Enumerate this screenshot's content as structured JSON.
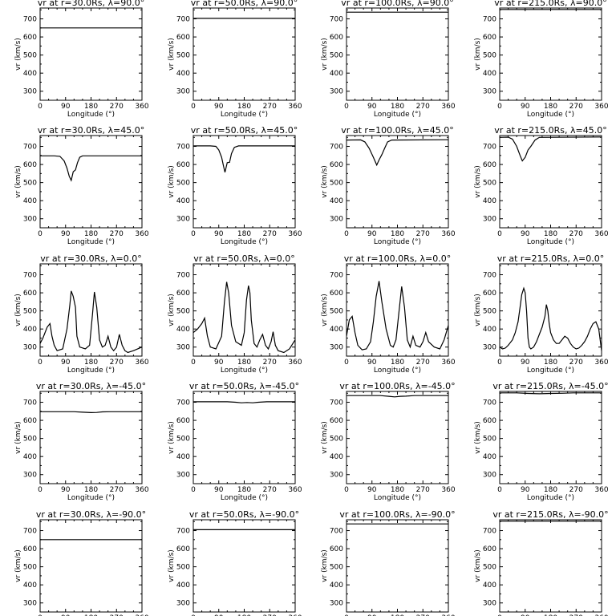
{
  "chart_data": {
    "type": "line",
    "layout": "5 rows x 4 columns",
    "xlabel": "Longitude (°)",
    "ylabel": "vr (km/s)",
    "xlim": [
      0,
      360
    ],
    "ylim": [
      250,
      760
    ],
    "xticks": [
      "0",
      "90",
      "180",
      "270",
      "360"
    ],
    "yticks": [
      "300",
      "400",
      "500",
      "600",
      "700"
    ],
    "grid": false,
    "legend": "none",
    "line_color": "#000000",
    "radii": [
      "30.0Rs",
      "50.0Rs",
      "100.0Rs",
      "215.0Rs"
    ],
    "latitudes": [
      "90.0°",
      "45.0°",
      "0.0°",
      "-45.0°",
      "-90.0°"
    ],
    "panels": [
      {
        "title": "vr at r=30.0Rs, λ=90.0°",
        "x": [
          0,
          360
        ],
        "y": [
          650,
          650
        ]
      },
      {
        "title": "vr at r=50.0Rs, λ=90.0°",
        "x": [
          0,
          360
        ],
        "y": [
          703,
          703
        ]
      },
      {
        "title": "vr at r=100.0Rs, λ=90.0°",
        "x": [
          0,
          360
        ],
        "y": [
          737,
          737
        ]
      },
      {
        "title": "vr at r=215.0Rs, λ=90.0°",
        "x": [
          0,
          360
        ],
        "y": [
          752,
          752
        ]
      },
      {
        "title": "vr at r=30.0Rs, λ=45.0°",
        "x": [
          0,
          50,
          70,
          85,
          95,
          103,
          110,
          117,
          125,
          132,
          140,
          150,
          170,
          360
        ],
        "y": [
          648,
          648,
          645,
          620,
          580,
          535,
          512,
          560,
          570,
          610,
          640,
          648,
          648,
          648
        ]
      },
      {
        "title": "vr at r=50.0Rs, λ=45.0°",
        "x": [
          0,
          60,
          80,
          90,
          100,
          107,
          112,
          120,
          128,
          135,
          145,
          160,
          360
        ],
        "y": [
          703,
          703,
          700,
          680,
          640,
          590,
          557,
          610,
          612,
          660,
          695,
          703,
          703
        ]
      },
      {
        "title": "vr at r=100.0Rs, λ=45.0°",
        "x": [
          0,
          50,
          65,
          80,
          95,
          107,
          115,
          125,
          135,
          145,
          160,
          360
        ],
        "y": [
          735,
          736,
          725,
          690,
          640,
          597,
          625,
          655,
          690,
          725,
          735,
          737
        ]
      },
      {
        "title": "vr at r=215.0Rs, λ=45.0°",
        "x": [
          0,
          30,
          45,
          60,
          72,
          80,
          90,
          100,
          110,
          125,
          140,
          360
        ],
        "y": [
          750,
          751,
          740,
          700,
          650,
          620,
          640,
          680,
          700,
          735,
          750,
          752
        ]
      },
      {
        "title": "vr at r=30.0Rs, λ=0.0°",
        "x": [
          0,
          10,
          25,
          35,
          42,
          50,
          60,
          80,
          95,
          105,
          110,
          117,
          125,
          130,
          140,
          160,
          175,
          185,
          192,
          200,
          210,
          220,
          230,
          240,
          250,
          260,
          270,
          280,
          290,
          300,
          310,
          330,
          360
        ],
        "y": [
          320,
          350,
          410,
          430,
          360,
          310,
          280,
          290,
          400,
          530,
          610,
          580,
          520,
          360,
          300,
          290,
          310,
          480,
          605,
          520,
          340,
          300,
          310,
          360,
          300,
          280,
          300,
          370,
          310,
          280,
          270,
          280,
          300
        ]
      },
      {
        "title": "vr at r=50.0Rs, λ=0.0°",
        "x": [
          0,
          15,
          30,
          40,
          50,
          60,
          80,
          100,
          110,
          118,
          125,
          135,
          150,
          170,
          180,
          188,
          195,
          200,
          205,
          215,
          225,
          235,
          245,
          255,
          265,
          275,
          282,
          290,
          300,
          320,
          340,
          360
        ],
        "y": [
          380,
          400,
          430,
          460,
          360,
          300,
          290,
          360,
          550,
          660,
          600,
          420,
          330,
          310,
          380,
          560,
          640,
          600,
          450,
          320,
          300,
          340,
          370,
          310,
          290,
          330,
          385,
          310,
          280,
          270,
          290,
          340
        ]
      },
      {
        "title": "vr at r=100.0Rs, λ=0.0°",
        "x": [
          0,
          10,
          20,
          30,
          40,
          55,
          70,
          85,
          95,
          105,
          115,
          125,
          140,
          155,
          165,
          175,
          185,
          195,
          205,
          215,
          225,
          235,
          245,
          260,
          270,
          280,
          290,
          310,
          330,
          345,
          360
        ],
        "y": [
          360,
          450,
          470,
          380,
          310,
          285,
          290,
          330,
          440,
          580,
          665,
          550,
          400,
          310,
          300,
          340,
          490,
          635,
          520,
          340,
          300,
          360,
          310,
          300,
          330,
          380,
          330,
          300,
          290,
          340,
          420
        ]
      },
      {
        "title": "vr at r=215.0Rs, λ=0.0°",
        "x": [
          0,
          10,
          20,
          30,
          45,
          55,
          65,
          72,
          78,
          85,
          90,
          95,
          100,
          105,
          110,
          120,
          130,
          140,
          150,
          160,
          165,
          170,
          175,
          180,
          190,
          200,
          210,
          220,
          230,
          240,
          250,
          260,
          270,
          280,
          290,
          300,
          310,
          320,
          330,
          340,
          350,
          360
        ],
        "y": [
          300,
          290,
          295,
          310,
          340,
          380,
          440,
          520,
          590,
          625,
          600,
          500,
          350,
          300,
          290,
          300,
          330,
          370,
          410,
          470,
          535,
          500,
          430,
          380,
          340,
          320,
          320,
          340,
          360,
          350,
          320,
          300,
          290,
          295,
          310,
          330,
          360,
          400,
          430,
          440,
          400,
          280
        ]
      },
      {
        "title": "vr at r=30.0Rs, λ=-45.0°",
        "x": [
          0,
          120,
          150,
          180,
          200,
          220,
          250,
          360
        ],
        "y": [
          648,
          648,
          645,
          643,
          644,
          647,
          648,
          648
        ]
      },
      {
        "title": "vr at r=50.0Rs, λ=-45.0°",
        "x": [
          0,
          120,
          150,
          170,
          190,
          210,
          230,
          260,
          360
        ],
        "y": [
          703,
          703,
          700,
          697,
          699,
          697,
          700,
          703,
          703
        ]
      },
      {
        "title": "vr at r=100.0Rs, λ=-45.0°",
        "x": [
          0,
          120,
          150,
          170,
          190,
          210,
          240,
          360
        ],
        "y": [
          737,
          737,
          733,
          730,
          733,
          734,
          737,
          737
        ]
      },
      {
        "title": "vr at r=215.0Rs, λ=-45.0°",
        "x": [
          0,
          60,
          100,
          140,
          180,
          220,
          260,
          360
        ],
        "y": [
          752,
          752,
          749,
          747,
          749,
          750,
          752,
          752
        ]
      },
      {
        "title": "vr at r=30.0Rs, λ=-90.0°",
        "x": [
          0,
          360
        ],
        "y": [
          650,
          650
        ]
      },
      {
        "title": "vr at r=50.0Rs, λ=-90.0°",
        "x": [
          0,
          360
        ],
        "y": [
          705,
          705
        ]
      },
      {
        "title": "vr at r=100.0Rs, λ=-90.0°",
        "x": [
          0,
          360
        ],
        "y": [
          737,
          737
        ]
      },
      {
        "title": "vr at r=215.0Rs, λ=-90.0°",
        "x": [
          0,
          360
        ],
        "y": [
          752,
          752
        ]
      }
    ]
  }
}
